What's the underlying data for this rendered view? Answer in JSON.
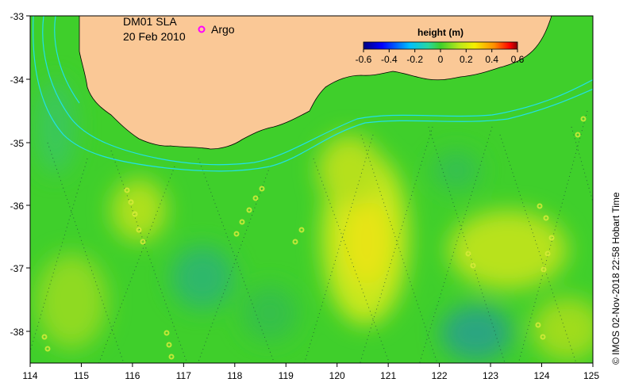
{
  "map": {
    "title_line1": "DM01 SLA",
    "title_line2": "20 Feb 2010",
    "argo_label": "Argo",
    "credit": "© IMOS 02-Nov-2018 22:58 Hobart Time",
    "x_ticks": [
      "114",
      "115",
      "116",
      "117",
      "118",
      "119",
      "120",
      "121",
      "122",
      "123",
      "124",
      "125"
    ],
    "y_ticks": [
      "-33",
      "-34",
      "-35",
      "-36",
      "-37",
      "-38"
    ],
    "colorbar": {
      "label": "height (m)",
      "ticks": [
        "-0.6",
        "-0.4",
        "-0.2",
        "0",
        "0.2",
        "0.4",
        "0.6"
      ]
    },
    "colors": {
      "land": "#fac896",
      "ocean_base": "#3fcf2b",
      "contour": "#22e0e8",
      "argo": "#ff00ff"
    }
  }
}
